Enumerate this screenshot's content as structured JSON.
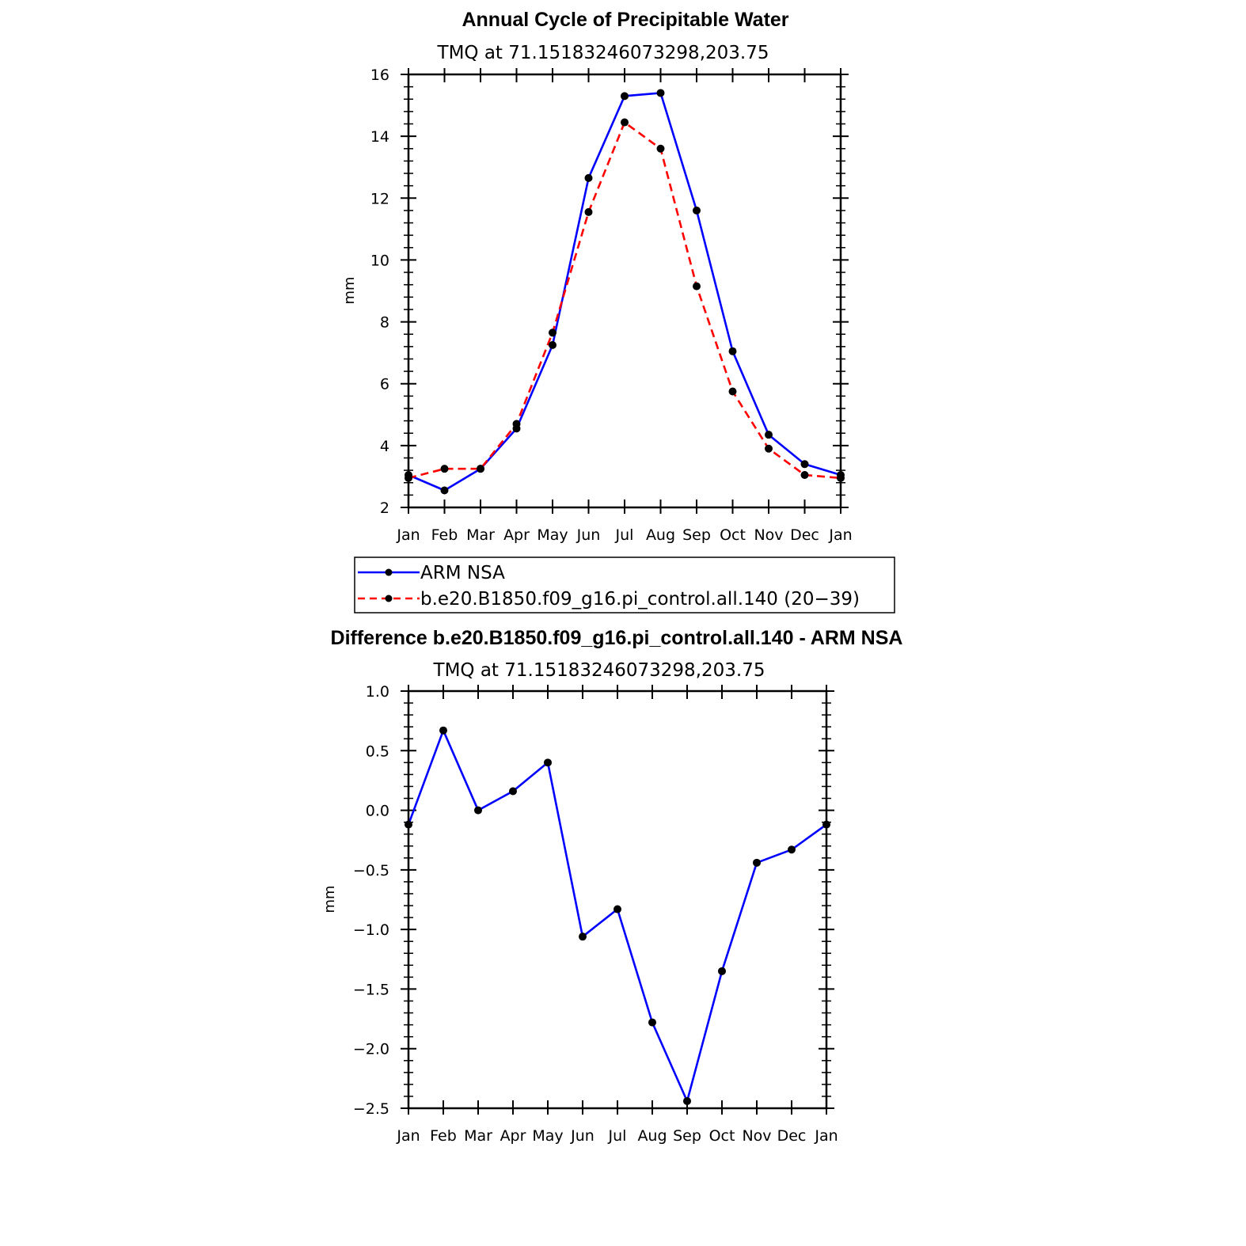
{
  "chart_data": [
    {
      "type": "line",
      "title": "Annual Cycle of Precipitable Water",
      "subtitle": "TMQ at 71.15183246073298,203.75",
      "xlabel": "",
      "ylabel": "mm",
      "categories": [
        "Jan",
        "Feb",
        "Mar",
        "Apr",
        "May",
        "Jun",
        "Jul",
        "Aug",
        "Sep",
        "Oct",
        "Nov",
        "Dec",
        "Jan"
      ],
      "ylim": [
        2,
        16
      ],
      "yticks": [
        "2",
        "4",
        "6",
        "8",
        "10",
        "12",
        "14",
        "16"
      ],
      "ytick_values": [
        2,
        4,
        6,
        8,
        10,
        12,
        14,
        16
      ],
      "series": [
        {
          "name": "ARM NSA",
          "color": "#0000ff",
          "dash": "solid",
          "values": [
            3.05,
            2.55,
            3.25,
            4.55,
            7.25,
            12.65,
            15.3,
            15.4,
            11.6,
            7.05,
            4.35,
            3.4,
            3.05
          ]
        },
        {
          "name": "b.e20.B1850.f09_g16.pi_control.all.140 (20−39)",
          "color": "#ff0000",
          "dash": "dashed",
          "values": [
            2.95,
            3.25,
            3.25,
            4.7,
            7.65,
            11.55,
            14.45,
            13.6,
            9.15,
            5.75,
            3.9,
            3.05,
            2.95
          ]
        }
      ],
      "legend_position": "below"
    },
    {
      "type": "line",
      "title": "Difference b.e20.B1850.f09_g16.pi_control.all.140 - ARM NSA",
      "subtitle": "TMQ at 71.15183246073298,203.75",
      "xlabel": "",
      "ylabel": "mm",
      "categories": [
        "Jan",
        "Feb",
        "Mar",
        "Apr",
        "May",
        "Jun",
        "Jul",
        "Aug",
        "Sep",
        "Oct",
        "Nov",
        "Dec",
        "Jan"
      ],
      "ylim": [
        -2.5,
        1.0
      ],
      "yticks": [
        "−2.5",
        "−2.0",
        "−1.5",
        "−1.0",
        "−0.5",
        "0.0",
        "0.5",
        "1.0"
      ],
      "ytick_values": [
        -2.5,
        -2.0,
        -1.5,
        -1.0,
        -0.5,
        0.0,
        0.5,
        1.0
      ],
      "series": [
        {
          "name": "Difference",
          "color": "#0000ff",
          "dash": "solid",
          "values": [
            -0.12,
            0.67,
            0.0,
            0.16,
            0.4,
            -1.06,
            -0.83,
            -1.78,
            -2.44,
            -1.35,
            -0.44,
            -0.33,
            -0.12
          ]
        }
      ]
    }
  ]
}
